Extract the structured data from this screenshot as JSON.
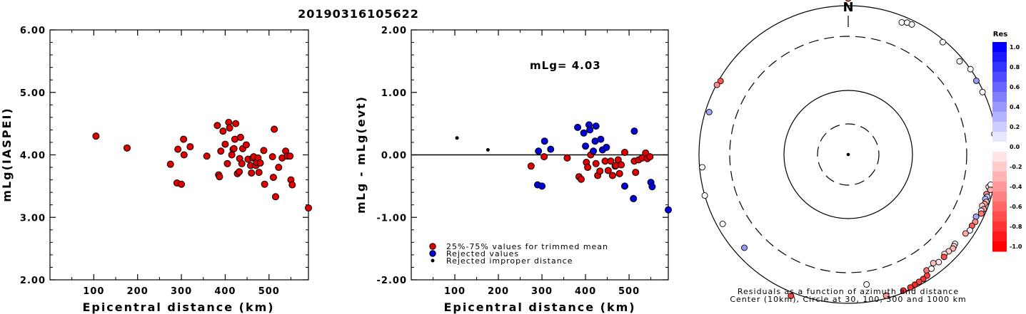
{
  "event_id": "20190316105622",
  "mlg_label": "mLg= 4.03",
  "chart_data": [
    {
      "type": "scatter",
      "xlabel": "Epicentral distance (km)",
      "ylabel": "mLg(IASPEI)",
      "xlim": [
        0,
        590
      ],
      "ylim": [
        2.0,
        6.0
      ],
      "xticks": [
        "100",
        "200",
        "300",
        "400",
        "500"
      ],
      "yticks": [
        "2.00",
        "3.00",
        "4.00",
        "5.00",
        "6.00"
      ],
      "series": [
        {
          "color": "#e00000",
          "points": [
            [
              105,
              4.3
            ],
            [
              176,
              4.11
            ],
            [
              275,
              3.85
            ],
            [
              290,
              3.55
            ],
            [
              292,
              4.09
            ],
            [
              300,
              3.53
            ],
            [
              305,
              4.25
            ],
            [
              306,
              4.0
            ],
            [
              320,
              4.13
            ],
            [
              358,
              3.98
            ],
            [
              382,
              4.47
            ],
            [
              385,
              3.68
            ],
            [
              387,
              3.65
            ],
            [
              390,
              4.06
            ],
            [
              395,
              4.38
            ],
            [
              400,
              4.17
            ],
            [
              405,
              3.86
            ],
            [
              408,
              4.52
            ],
            [
              410,
              4.43
            ],
            [
              415,
              4.0
            ],
            [
              418,
              4.09
            ],
            [
              420,
              4.1
            ],
            [
              422,
              4.25
            ],
            [
              424,
              4.5
            ],
            [
              428,
              3.7
            ],
            [
              432,
              3.73
            ],
            [
              433,
              3.94
            ],
            [
              435,
              4.28
            ],
            [
              438,
              3.86
            ],
            [
              440,
              4.1
            ],
            [
              448,
              4.16
            ],
            [
              452,
              3.93
            ],
            [
              458,
              3.83
            ],
            [
              460,
              3.71
            ],
            [
              463,
              3.95
            ],
            [
              465,
              3.97
            ],
            [
              470,
              3.83
            ],
            [
              472,
              3.88
            ],
            [
              475,
              3.95
            ],
            [
              477,
              3.72
            ],
            [
              480,
              3.87
            ],
            [
              488,
              4.07
            ],
            [
              490,
              3.53
            ],
            [
              508,
              3.97
            ],
            [
              510,
              3.64
            ],
            [
              512,
              4.41
            ],
            [
              515,
              3.33
            ],
            [
              522,
              3.8
            ],
            [
              530,
              3.95
            ],
            [
              538,
              4.06
            ],
            [
              542,
              3.98
            ],
            [
              548,
              3.98
            ],
            [
              550,
              3.6
            ],
            [
              553,
              3.52
            ],
            [
              590,
              3.15
            ]
          ]
        }
      ]
    },
    {
      "type": "scatter",
      "xlabel": "Epicentral distance (km)",
      "ylabel": "mLg - mLg(evt)",
      "xlim": [
        0,
        590
      ],
      "ylim": [
        -2.0,
        2.0
      ],
      "xticks": [
        "100",
        "200",
        "300",
        "400",
        "500"
      ],
      "yticks": [
        "-2.00",
        "-1.00",
        "0.00",
        "1.00",
        "2.00"
      ],
      "hline": 0.0,
      "legend": {
        "placement": "bottom-left",
        "entries": [
          {
            "label": "25%-75% values for trimmed mean",
            "color": "#e00000"
          },
          {
            "label": "Rejected values",
            "color": "#0000dd"
          },
          {
            "label": "Rejected improper distance",
            "color": "#000000"
          }
        ]
      },
      "series": [
        {
          "color": "#e00000",
          "points": [
            [
              275,
              -0.18
            ],
            [
              305,
              -0.03
            ],
            [
              358,
              -0.05
            ],
            [
              385,
              -0.35
            ],
            [
              390,
              -0.39
            ],
            [
              402,
              -0.12
            ],
            [
              405,
              -0.2
            ],
            [
              412,
              0.0
            ],
            [
              424,
              -0.14
            ],
            [
              428,
              -0.33
            ],
            [
              433,
              -0.26
            ],
            [
              445,
              -0.1
            ],
            [
              452,
              -0.25
            ],
            [
              458,
              -0.1
            ],
            [
              462,
              -0.33
            ],
            [
              468,
              -0.18
            ],
            [
              470,
              -0.17
            ],
            [
              475,
              -0.08
            ],
            [
              478,
              -0.3
            ],
            [
              482,
              -0.16
            ],
            [
              490,
              0.04
            ],
            [
              512,
              -0.1
            ],
            [
              515,
              -0.28
            ],
            [
              522,
              -0.08
            ],
            [
              530,
              -0.05
            ],
            [
              538,
              0.03
            ],
            [
              542,
              -0.06
            ],
            [
              548,
              -0.03
            ]
          ]
        },
        {
          "color": "#0000dd",
          "points": [
            [
              290,
              -0.48
            ],
            [
              292,
              0.06
            ],
            [
              300,
              -0.5
            ],
            [
              306,
              0.22
            ],
            [
              320,
              0.09
            ],
            [
              382,
              0.44
            ],
            [
              396,
              0.35
            ],
            [
              400,
              0.14
            ],
            [
              408,
              0.48
            ],
            [
              410,
              0.4
            ],
            [
              418,
              0.06
            ],
            [
              422,
              0.22
            ],
            [
              424,
              0.46
            ],
            [
              435,
              0.25
            ],
            [
              439,
              0.08
            ],
            [
              448,
              0.12
            ],
            [
              490,
              -0.5
            ],
            [
              510,
              -0.7
            ],
            [
              512,
              0.38
            ],
            [
              550,
              -0.44
            ],
            [
              553,
              -0.51
            ],
            [
              590,
              -0.88
            ]
          ]
        },
        {
          "color": "#000000",
          "small": true,
          "points": [
            [
              105,
              0.27
            ],
            [
              176,
              0.08
            ]
          ]
        }
      ]
    },
    {
      "type": "scatter",
      "subtype": "polar",
      "north_label": "N",
      "rings_km": [
        30,
        100,
        300,
        1000
      ],
      "caption": [
        "Residuals as a function of azimuth and distance",
        "Center (10km), Circle at 30, 100, 300 and 1000 km"
      ],
      "colorbar": {
        "title": "Res",
        "labels": [
          "1.0",
          "0.8",
          "0.6",
          "0.4",
          "0.2",
          "0.0",
          "-0.2",
          "-0.4",
          "-0.6",
          "-0.8",
          "-1.0"
        ],
        "max_color": "#0000ff",
        "zero_color": "#ffffff",
        "min_color": "#ff0000"
      },
      "points": [
        {
          "az": 0,
          "dist": 1100,
          "res": -0.6
        },
        {
          "az": 300,
          "dist": 930,
          "res": -0.65
        },
        {
          "az": 298,
          "dist": 980,
          "res": -0.45
        },
        {
          "az": 287,
          "dist": 860,
          "res": 0.35
        },
        {
          "az": 22,
          "dist": 780,
          "res": 0.0
        },
        {
          "az": 24,
          "dist": 840,
          "res": 0.0
        },
        {
          "az": 26,
          "dist": 850,
          "res": 0.0
        },
        {
          "az": 40,
          "dist": 920,
          "res": 0.0
        },
        {
          "az": 50,
          "dist": 860,
          "res": 0.0
        },
        {
          "az": 55,
          "dist": 1000,
          "res": 0.0
        },
        {
          "az": 60,
          "dist": 950,
          "res": 0.4
        },
        {
          "az": 65,
          "dist": 960,
          "res": 0.0
        },
        {
          "az": 82,
          "dist": 940,
          "res": 0.0
        },
        {
          "az": 103,
          "dist": 820,
          "res": -0.15
        },
        {
          "az": 102,
          "dist": 870,
          "res": 0.0
        },
        {
          "az": 104,
          "dist": 900,
          "res": -0.3
        },
        {
          "az": 106,
          "dist": 810,
          "res": -0.5
        },
        {
          "az": 107,
          "dist": 860,
          "res": 0.2
        },
        {
          "az": 108,
          "dist": 820,
          "res": 0.3
        },
        {
          "az": 109,
          "dist": 880,
          "res": -0.25
        },
        {
          "az": 110,
          "dist": 850,
          "res": -0.35
        },
        {
          "az": 111,
          "dist": 800,
          "res": -0.2
        },
        {
          "az": 112,
          "dist": 890,
          "res": -0.4
        },
        {
          "az": 113,
          "dist": 830,
          "res": 0.1
        },
        {
          "az": 114,
          "dist": 870,
          "res": -0.55
        },
        {
          "az": 116,
          "dist": 760,
          "res": 0.35
        },
        {
          "az": 118,
          "dist": 810,
          "res": -0.45
        },
        {
          "az": 120,
          "dist": 780,
          "res": -0.65
        },
        {
          "az": 122,
          "dist": 800,
          "res": 0.05
        },
        {
          "az": 124,
          "dist": 740,
          "res": -0.35
        },
        {
          "az": 130,
          "dist": 680,
          "res": 0.0
        },
        {
          "az": 131,
          "dist": 700,
          "res": -0.15
        },
        {
          "az": 132,
          "dist": 720,
          "res": -0.3
        },
        {
          "az": 134,
          "dist": 690,
          "res": -0.2
        },
        {
          "az": 136,
          "dist": 660,
          "res": -0.15
        },
        {
          "az": 137,
          "dist": 710,
          "res": -0.7
        },
        {
          "az": 140,
          "dist": 720,
          "res": -0.1
        },
        {
          "az": 142,
          "dist": 650,
          "res": -0.25
        },
        {
          "az": 146,
          "dist": 700,
          "res": -0.55
        },
        {
          "az": 144,
          "dist": 740,
          "res": 0.0
        },
        {
          "az": 147,
          "dist": 840,
          "res": -0.75
        },
        {
          "az": 149,
          "dist": 870,
          "res": -0.8
        },
        {
          "az": 151,
          "dist": 880,
          "res": -0.75
        },
        {
          "az": 153,
          "dist": 900,
          "res": -0.85
        },
        {
          "az": 155,
          "dist": 920,
          "res": -0.8
        },
        {
          "az": 158,
          "dist": 920,
          "res": -0.85
        },
        {
          "az": 165,
          "dist": 900,
          "res": -0.4
        },
        {
          "az": 172,
          "dist": 500,
          "res": 0.0
        },
        {
          "az": 202,
          "dist": 1050,
          "res": -0.75
        },
        {
          "az": 228,
          "dist": 690,
          "res": 0.4
        },
        {
          "az": 241,
          "dist": 800,
          "res": 0.0
        },
        {
          "az": 254,
          "dist": 1000,
          "res": 0.0
        },
        {
          "az": 265,
          "dist": 900,
          "res": 0.0
        }
      ]
    }
  ]
}
